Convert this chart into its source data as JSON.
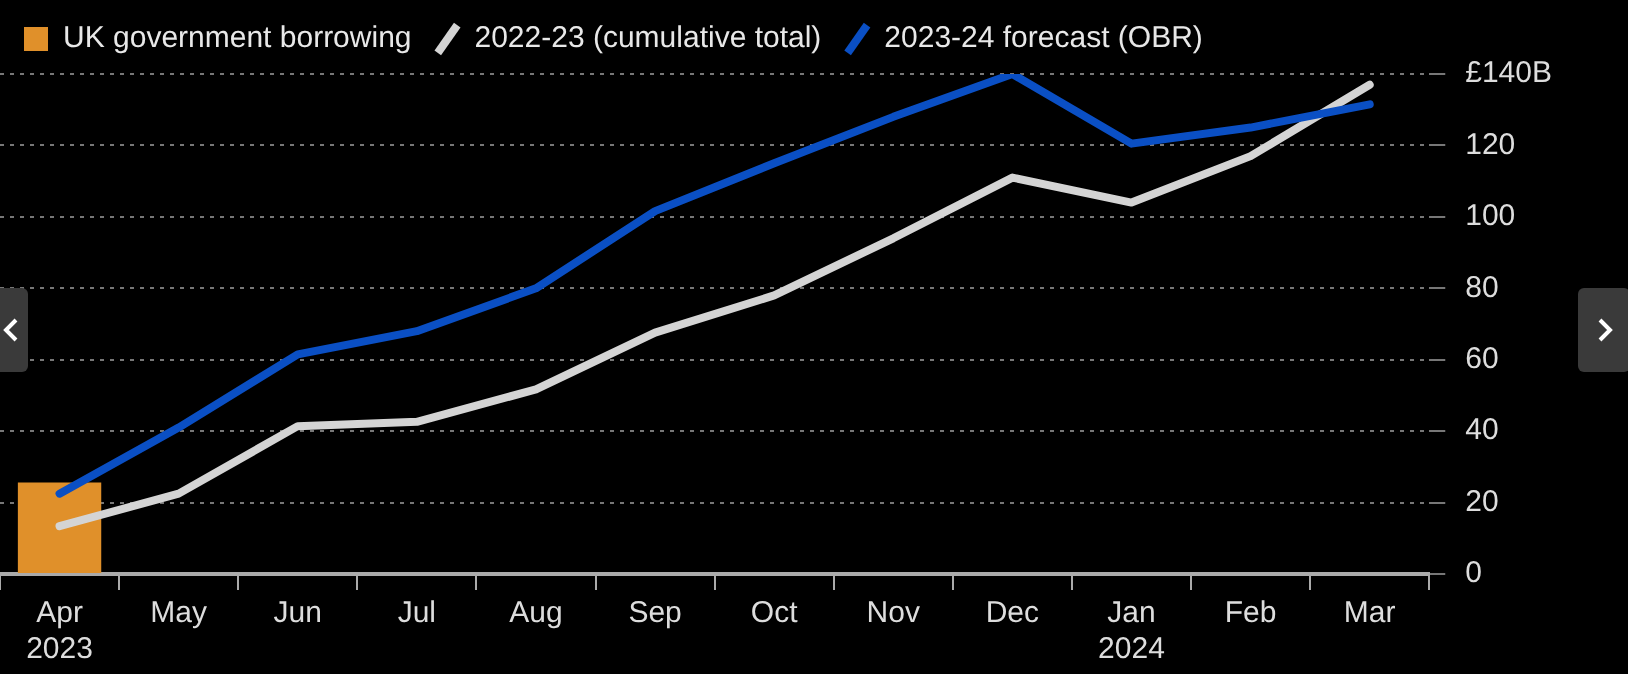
{
  "chart_data": {
    "type": "line",
    "categories": [
      "Apr\n2023",
      "May",
      "Jun",
      "Jul",
      "Aug",
      "Sep",
      "Oct",
      "Nov",
      "Dec",
      "Jan\n2024",
      "Feb",
      "Mar"
    ],
    "series": [
      {
        "name": "UK government borrowing",
        "type": "bar",
        "color": "#e0902a",
        "values": [
          25.6,
          null,
          null,
          null,
          null,
          null,
          null,
          null,
          null,
          null,
          null,
          null
        ]
      },
      {
        "name": "2022-23 (cumulative total)",
        "color": "#d4d4d4",
        "values": [
          13.4,
          22.5,
          41.4,
          42.6,
          51.7,
          67.6,
          78,
          94,
          111,
          104,
          117,
          137
        ]
      },
      {
        "name": "2023-24 forecast (OBR)",
        "color": "#0a4fc4",
        "values": [
          22.5,
          41,
          61.5,
          68,
          80,
          101.6,
          115,
          128,
          140,
          120.5,
          125,
          131.5
        ]
      }
    ],
    "ylim": [
      0,
      140
    ],
    "yticks": [
      0,
      20,
      40,
      60,
      80,
      100,
      120,
      {
        "value": 140,
        "label": "£140B"
      }
    ],
    "grid": "y",
    "legend": "top left",
    "line_style": "solid",
    "marker": "none"
  }
}
